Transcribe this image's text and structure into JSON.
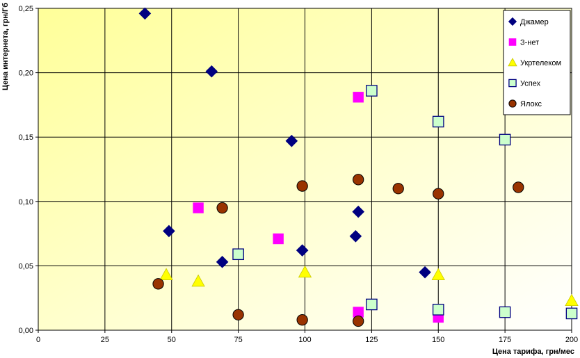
{
  "chart_data": {
    "type": "scatter",
    "xlabel": "Цена тарифа, грн/мес",
    "ylabel": "Цена интернета, грн/Гб",
    "xlim": [
      0,
      200
    ],
    "ylim": [
      0,
      0.25
    ],
    "x_ticks": [
      "0",
      "25",
      "50",
      "75",
      "100",
      "125",
      "150",
      "175",
      "200"
    ],
    "y_ticks": [
      "0,00",
      "0,05",
      "0,10",
      "0,15",
      "0,20",
      "0,25"
    ],
    "grid": true,
    "legend_position": "top-right",
    "background": "yellow gradient",
    "series": [
      {
        "name": "Джамер",
        "marker": "diamond",
        "color": "#000080",
        "points": [
          [
            40,
            0.246
          ],
          [
            65,
            0.201
          ],
          [
            95,
            0.147
          ],
          [
            49,
            0.077
          ],
          [
            69,
            0.053
          ],
          [
            99,
            0.062
          ],
          [
            120,
            0.092
          ],
          [
            119,
            0.073
          ],
          [
            145,
            0.045
          ]
        ]
      },
      {
        "name": "З-нет",
        "marker": "square",
        "color": "#FF00FF",
        "points": [
          [
            60,
            0.095
          ],
          [
            90,
            0.071
          ],
          [
            120,
            0.181
          ],
          [
            120,
            0.014
          ],
          [
            150,
            0.01
          ]
        ]
      },
      {
        "name": "Укртелеком",
        "marker": "triangle",
        "color": "#FFFF00",
        "points": [
          [
            48,
            0.043
          ],
          [
            60,
            0.038
          ],
          [
            100,
            0.045
          ],
          [
            150,
            0.043
          ],
          [
            200,
            0.023
          ]
        ]
      },
      {
        "name": "Успех",
        "marker": "square-open",
        "color": "#CCFFCC",
        "points": [
          [
            75,
            0.059
          ],
          [
            125,
            0.186
          ],
          [
            125,
            0.02
          ],
          [
            150,
            0.162
          ],
          [
            150,
            0.016
          ],
          [
            175,
            0.148
          ],
          [
            175,
            0.014
          ],
          [
            200,
            0.013
          ]
        ]
      },
      {
        "name": "Ялокс",
        "marker": "circle",
        "color": "#993300",
        "points": [
          [
            45,
            0.036
          ],
          [
            69,
            0.095
          ],
          [
            75,
            0.012
          ],
          [
            99,
            0.112
          ],
          [
            99,
            0.008
          ],
          [
            120,
            0.117
          ],
          [
            120,
            0.007
          ],
          [
            135,
            0.11
          ],
          [
            150,
            0.106
          ],
          [
            180,
            0.111
          ]
        ]
      }
    ]
  }
}
